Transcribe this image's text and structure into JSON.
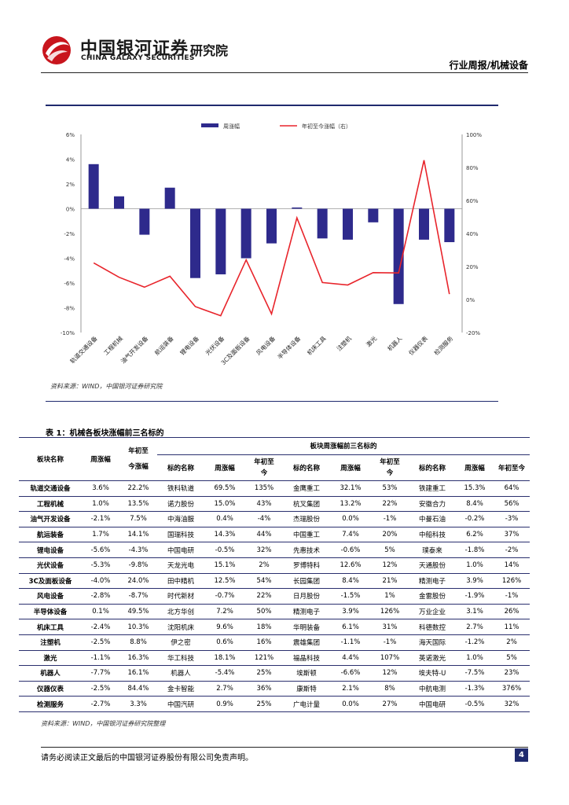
{
  "header": {
    "brand_cn": "中国银河证券",
    "brand_en": "CHINA GALAXY SECURITIES",
    "brand_inst": "研究院",
    "section": "行业周报/机械设备"
  },
  "colors": {
    "bar": "#2e2a8c",
    "line": "#e8242b",
    "rule": "#1f2a6e"
  },
  "chart_data": {
    "type": "bar",
    "categories": [
      "轨道交通设备",
      "工程机械",
      "油气开发设备",
      "航运装备",
      "锂电设备",
      "光伏设备",
      "3C及面板设备",
      "风电设备",
      "半导体设备",
      "机床工具",
      "注塑机",
      "激光",
      "机器人",
      "仪器仪表",
      "检测服务"
    ],
    "series": [
      {
        "name": "周涨幅",
        "axis": "left",
        "values": [
          3.6,
          1.0,
          -2.1,
          1.7,
          -5.6,
          -5.3,
          -4.0,
          -2.8,
          0.1,
          -2.4,
          -2.5,
          -1.1,
          -7.7,
          -2.5,
          -2.7
        ]
      },
      {
        "name": "年初至今涨幅（右）",
        "axis": "right",
        "type": "line",
        "values": [
          22.2,
          13.5,
          7.5,
          14.1,
          -4.3,
          -9.8,
          24.0,
          -8.7,
          49.5,
          10.3,
          8.8,
          16.3,
          16.1,
          84.4,
          3.3
        ]
      }
    ],
    "left_ticks": [
      "6%",
      "4%",
      "2%",
      "0%",
      "-2%",
      "-4%",
      "-6%",
      "-8%",
      "-10%"
    ],
    "right_ticks": [
      "100%",
      "80%",
      "60%",
      "40%",
      "20%",
      "0%",
      "-20%"
    ],
    "ylim_left": [
      -10,
      6
    ],
    "ylim_right": [
      -20,
      100
    ],
    "legend_position": "top",
    "source": "资料来源：WIND，中国银河证券研究院"
  },
  "table": {
    "title": "表 1：机械各板块涨幅前三名标的",
    "group_header": "板块周涨幅前三名标的",
    "col_sector": "板块名称",
    "col_week": "周涨幅",
    "col_ytd": "年初至今涨幅",
    "col_ytd_a": "年初至",
    "col_ytd_b": "今涨幅",
    "col_target": "标的名称",
    "col_t_week": "周涨幅",
    "col_t_ytd_a": "年初至",
    "col_t_ytd_b": "今",
    "col_t_ytd_last": "年初至今",
    "rows": [
      [
        "轨道交通设备",
        "3.6%",
        "22.2%",
        "铁科轨道",
        "69.5%",
        "135%",
        "金鹰重工",
        "32.1%",
        "53%",
        "铁建重工",
        "15.3%",
        "64%"
      ],
      [
        "工程机械",
        "1.0%",
        "13.5%",
        "诺力股份",
        "15.0%",
        "43%",
        "杭叉集团",
        "13.2%",
        "22%",
        "安徽合力",
        "8.4%",
        "56%"
      ],
      [
        "油气开发设备",
        "-2.1%",
        "7.5%",
        "中海油服",
        "0.4%",
        "-4%",
        "杰瑞股份",
        "0.0%",
        "-1%",
        "中曼石油",
        "-0.2%",
        "-3%"
      ],
      [
        "航运装备",
        "1.7%",
        "14.1%",
        "国瑞科技",
        "14.3%",
        "44%",
        "中国重工",
        "7.4%",
        "20%",
        "中船科技",
        "6.2%",
        "37%"
      ],
      [
        "锂电设备",
        "-5.6%",
        "-4.3%",
        "中国电研",
        "-0.5%",
        "32%",
        "先惠技术",
        "-0.6%",
        "5%",
        "璞泰来",
        "-1.8%",
        "-2%"
      ],
      [
        "光伏设备",
        "-5.3%",
        "-9.8%",
        "天龙光电",
        "15.1%",
        "2%",
        "罗博特科",
        "12.6%",
        "12%",
        "天通股份",
        "1.0%",
        "14%"
      ],
      [
        "3C及面板设备",
        "-4.0%",
        "24.0%",
        "田中精机",
        "12.5%",
        "54%",
        "长园集团",
        "8.4%",
        "21%",
        "精测电子",
        "3.9%",
        "126%"
      ],
      [
        "风电设备",
        "-2.8%",
        "-8.7%",
        "时代新材",
        "-0.7%",
        "22%",
        "日月股份",
        "-1.5%",
        "1%",
        "金雷股份",
        "-1.9%",
        "-1%"
      ],
      [
        "半导体设备",
        "0.1%",
        "49.5%",
        "北方华创",
        "7.2%",
        "50%",
        "精测电子",
        "3.9%",
        "126%",
        "万业企业",
        "3.1%",
        "26%"
      ],
      [
        "机床工具",
        "-2.4%",
        "10.3%",
        "沈阳机床",
        "9.6%",
        "18%",
        "华明装备",
        "6.1%",
        "31%",
        "科德数控",
        "2.7%",
        "11%"
      ],
      [
        "注塑机",
        "-2.5%",
        "8.8%",
        "伊之密",
        "0.6%",
        "16%",
        "震雄集团",
        "-1.1%",
        "-1%",
        "海天国际",
        "-1.2%",
        "2%"
      ],
      [
        "激光",
        "-1.1%",
        "16.3%",
        "华工科技",
        "18.1%",
        "121%",
        "福晶科技",
        "4.4%",
        "107%",
        "英诺激光",
        "1.0%",
        "5%"
      ],
      [
        "机器人",
        "-7.7%",
        "16.1%",
        "机器人",
        "-5.4%",
        "25%",
        "埃斯顿",
        "-6.6%",
        "12%",
        "埃夫特-U",
        "-7.5%",
        "23%"
      ],
      [
        "仪器仪表",
        "-2.5%",
        "84.4%",
        "金卡智能",
        "2.7%",
        "36%",
        "康斯特",
        "2.1%",
        "8%",
        "中航电测",
        "-1.3%",
        "376%"
      ],
      [
        "检测服务",
        "-2.7%",
        "3.3%",
        "中国汽研",
        "0.9%",
        "25%",
        "广电计量",
        "0.0%",
        "27%",
        "中国电研",
        "-0.5%",
        "32%"
      ]
    ],
    "source": "资料来源：WIND，中国银河证券研究院整理"
  },
  "footer": {
    "disclaimer": "请务必阅读正文最后的中国银河证券股份有限公司免责声明。",
    "page": "4"
  }
}
